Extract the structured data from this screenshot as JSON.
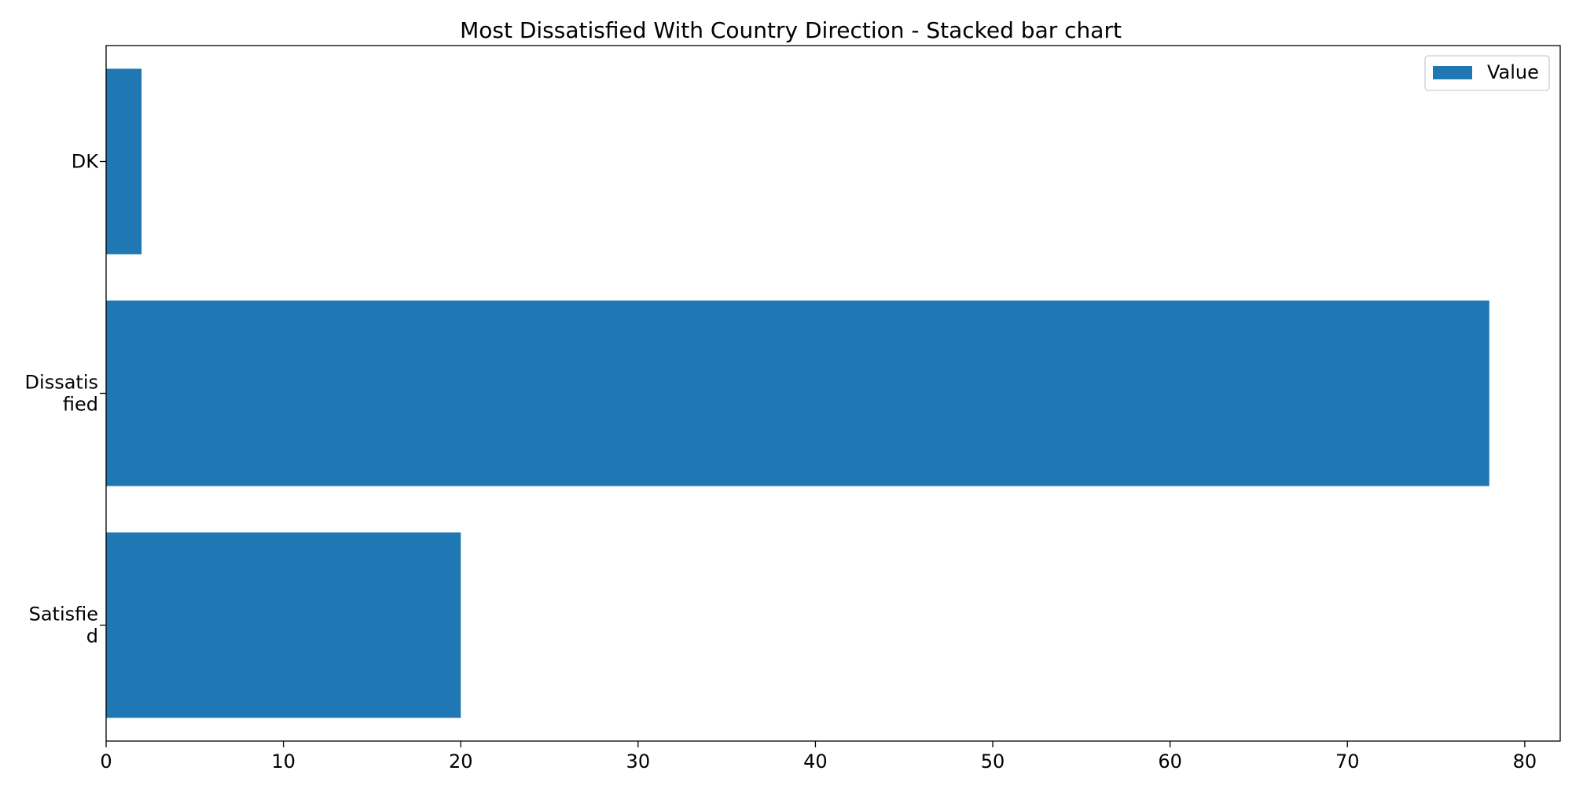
{
  "chart_data": {
    "type": "bar",
    "orientation": "horizontal",
    "title": "Most Dissatisfied With Country Direction  - Stacked bar chart",
    "xlabel": "",
    "ylabel": "",
    "categories": [
      [
        "DK"
      ],
      [
        "Dissatis",
        "fied"
      ],
      [
        "Satisfie",
        "d"
      ]
    ],
    "series": [
      {
        "name": "Value",
        "color": "#1f77b4",
        "values": [
          2,
          78,
          20
        ]
      }
    ],
    "xlim": [
      0,
      82
    ],
    "xticks": [
      0,
      10,
      20,
      30,
      40,
      50,
      60,
      70,
      80
    ],
    "grid": false,
    "legend_position": "top-right"
  }
}
